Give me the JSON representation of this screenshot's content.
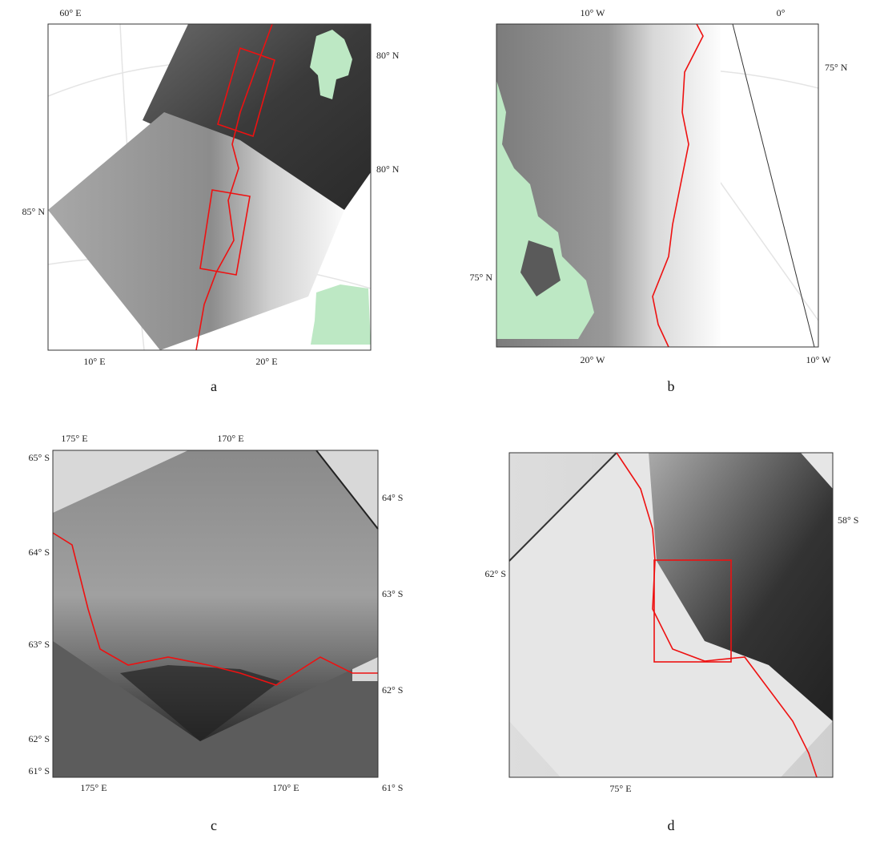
{
  "panels": [
    {
      "caption": "a",
      "labels": [
        "60° E",
        "80° N",
        "80° N",
        "85° N",
        "10° E",
        "20° E"
      ]
    },
    {
      "caption": "b",
      "labels": [
        "10° W",
        "0°",
        "75° N",
        "75° N",
        "20° W",
        "10° W"
      ]
    },
    {
      "caption": "c",
      "labels": [
        "175° E",
        "170° E",
        "65° S",
        "64° S",
        "63° S",
        "62° S",
        "61° S",
        "64° S",
        "63° S",
        "62° S",
        "61° S",
        "175° E",
        "170° E"
      ]
    },
    {
      "caption": "d",
      "labels": [
        "58° S",
        "62° S",
        "75° E"
      ]
    }
  ]
}
